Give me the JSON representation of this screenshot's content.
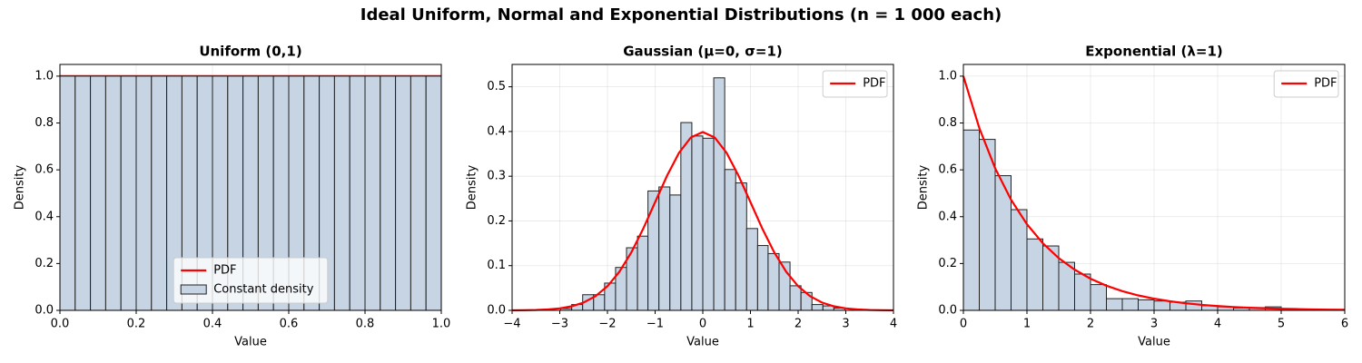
{
  "title": "Ideal Uniform, Normal and Exponential Distributions (n = 1 000 each)",
  "chart_data": [
    {
      "type": "histogram",
      "title": "Uniform (0,1)",
      "xlabel": "Value",
      "ylabel": "Density",
      "xlim": [
        0,
        1
      ],
      "ylim": [
        0,
        1.05
      ],
      "xticks": [
        {
          "value": 0,
          "label": "0.0"
        },
        0.2,
        0.4,
        0.6,
        0.8,
        {
          "value": 1,
          "label": "1.0"
        }
      ],
      "yticks": [
        {
          "value": 0,
          "label": "0.0"
        },
        0.2,
        0.4,
        0.6,
        0.8,
        {
          "value": 1,
          "label": "1.0"
        }
      ],
      "grid": true,
      "legend": "lower center",
      "series": [
        {
          "name": "PDF",
          "type": "line",
          "color": "#ff0000",
          "x": [
            0,
            1
          ],
          "values": [
            1,
            1
          ]
        },
        {
          "name": "Constant density",
          "type": "histogram",
          "color": "#c6d4e4",
          "bins": [
            0,
            0.04,
            0.08,
            0.12,
            0.16,
            0.2,
            0.24,
            0.28,
            0.32,
            0.36,
            0.4,
            0.44,
            0.48,
            0.52,
            0.56,
            0.6,
            0.64,
            0.68,
            0.72,
            0.76,
            0.8,
            0.84,
            0.88,
            0.92,
            0.96,
            1
          ],
          "values": [
            1,
            1,
            1,
            1,
            1,
            1,
            1,
            1,
            1,
            1,
            1,
            1,
            1,
            1,
            1,
            1,
            1,
            1,
            1,
            1,
            1,
            1,
            1,
            1,
            1
          ]
        }
      ]
    },
    {
      "type": "histogram",
      "title": "Gaussian (μ=0, σ=1)",
      "xlabel": "Value",
      "ylabel": "Density",
      "xlim": [
        -4,
        4
      ],
      "ylim": [
        0,
        0.55
      ],
      "xticks": [
        {
          "value": -4,
          "label": "−4"
        },
        {
          "value": -3,
          "label": "−3"
        },
        {
          "value": -2,
          "label": "−2"
        },
        {
          "value": -1,
          "label": "−1"
        },
        0,
        1,
        2,
        3,
        4
      ],
      "yticks": [
        {
          "value": 0,
          "label": "0.0"
        },
        0.1,
        0.2,
        0.3,
        0.4,
        0.5
      ],
      "grid": true,
      "legend": "upper right",
      "series": [
        {
          "type": "histogram",
          "color": "#c6d4e4",
          "bins": [
            -2.98,
            -2.75,
            -2.52,
            -2.29,
            -2.06,
            -1.83,
            -1.6,
            -1.37,
            -1.15,
            -0.92,
            -0.69,
            -0.46,
            -0.23,
            0,
            0.23,
            0.46,
            0.69,
            0.92,
            1.15,
            1.37,
            1.6,
            1.83,
            2.06,
            2.29,
            2.52,
            2.75,
            2.98
          ],
          "values": [
            0.004,
            0.013,
            0.035,
            0.035,
            0.061,
            0.096,
            0.14,
            0.166,
            0.267,
            0.276,
            0.258,
            0.42,
            0.39,
            0.385,
            0.52,
            0.315,
            0.285,
            0.183,
            0.145,
            0.127,
            0.108,
            0.055,
            0.04,
            0.013,
            0.01,
            0.005
          ]
        },
        {
          "name": "PDF",
          "type": "line",
          "color": "#ff0000",
          "x": [
            -4,
            -3.75,
            -3.5,
            -3.25,
            -3,
            -2.75,
            -2.5,
            -2.25,
            -2,
            -1.75,
            -1.5,
            -1.25,
            -1,
            -0.75,
            -0.5,
            -0.25,
            0,
            0.25,
            0.5,
            0.75,
            1,
            1.25,
            1.5,
            1.75,
            2,
            2.25,
            2.5,
            2.75,
            3,
            3.25,
            3.5,
            3.75,
            4
          ],
          "values": [
            0.0001,
            0.0004,
            0.0009,
            0.002,
            0.0044,
            0.0091,
            0.0175,
            0.0317,
            0.054,
            0.0863,
            0.1295,
            0.1826,
            0.242,
            0.3011,
            0.3521,
            0.3867,
            0.3989,
            0.3867,
            0.3521,
            0.3011,
            0.242,
            0.1826,
            0.1295,
            0.0863,
            0.054,
            0.0317,
            0.0175,
            0.0091,
            0.0044,
            0.002,
            0.0009,
            0.0004,
            0.0001
          ]
        }
      ]
    },
    {
      "type": "histogram",
      "title": "Exponential (λ=1)",
      "xlabel": "Value",
      "ylabel": "Density",
      "xlim": [
        0,
        6
      ],
      "ylim": [
        0,
        1.05
      ],
      "xticks": [
        0,
        1,
        2,
        3,
        4,
        5,
        6
      ],
      "yticks": [
        {
          "value": 0,
          "label": "0.0"
        },
        0.2,
        0.4,
        0.6,
        0.8,
        {
          "value": 1,
          "label": "1.0"
        }
      ],
      "grid": true,
      "legend": "upper right",
      "series": [
        {
          "type": "histogram",
          "color": "#c6d4e4",
          "bins": [
            0,
            0.25,
            0.5,
            0.75,
            1,
            1.25,
            1.5,
            1.75,
            2,
            2.25,
            2.5,
            2.75,
            3,
            3.25,
            3.5,
            3.75,
            4,
            4.25,
            4.5,
            4.75,
            5,
            5.25,
            5.5,
            5.75,
            6
          ],
          "values": [
            0.77,
            0.73,
            0.575,
            0.43,
            0.305,
            0.275,
            0.205,
            0.155,
            0.11,
            0.05,
            0.05,
            0.045,
            0.04,
            0.035,
            0.04,
            0.02,
            0.015,
            0.01,
            0.012,
            0.015,
            0.008,
            0.005,
            0.003,
            0.002
          ]
        },
        {
          "name": "PDF",
          "type": "line",
          "color": "#ff0000",
          "x": [
            0,
            0.25,
            0.5,
            0.75,
            1,
            1.25,
            1.5,
            1.75,
            2,
            2.25,
            2.5,
            2.75,
            3,
            3.25,
            3.5,
            3.75,
            4,
            4.25,
            4.5,
            4.75,
            5,
            5.25,
            5.5,
            5.75,
            6
          ],
          "values": [
            1,
            0.7788,
            0.6065,
            0.4724,
            0.3679,
            0.2865,
            0.2231,
            0.1738,
            0.1353,
            0.1054,
            0.0821,
            0.0639,
            0.0498,
            0.0388,
            0.0302,
            0.0235,
            0.0183,
            0.0143,
            0.0111,
            0.0087,
            0.0067,
            0.0052,
            0.0041,
            0.0032,
            0.0025
          ]
        }
      ]
    }
  ]
}
